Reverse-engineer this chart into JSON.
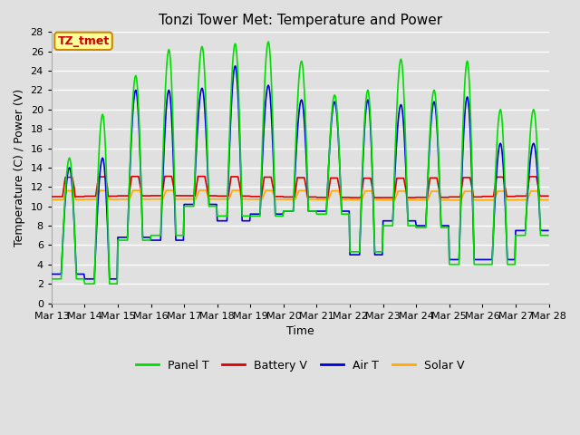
{
  "title": "Tonzi Tower Met: Temperature and Power",
  "xlabel": "Time",
  "ylabel": "Temperature (C) / Power (V)",
  "annotation": "TZ_tmet",
  "ylim": [
    0,
    28
  ],
  "n_days": 15,
  "panel_t_color": "#00dd00",
  "battery_v_color": "#dd0000",
  "air_t_color": "#0000dd",
  "solar_v_color": "#ffaa00",
  "bg_color": "#e0e0e0",
  "grid_color": "#ffffff",
  "annotation_bg": "#ffff99",
  "annotation_border": "#cc8800",
  "xtick_labels": [
    "Mar 13",
    "Mar 14",
    "Mar 15",
    "Mar 16",
    "Mar 17",
    "Mar 18",
    "Mar 19",
    "Mar 20",
    "Mar 21",
    "Mar 22",
    "Mar 23",
    "Mar 24",
    "Mar 25",
    "Mar 26",
    "Mar 27",
    "Mar 28"
  ],
  "title_fontsize": 11,
  "legend_fontsize": 9,
  "axis_fontsize": 9,
  "tick_fontsize": 8
}
